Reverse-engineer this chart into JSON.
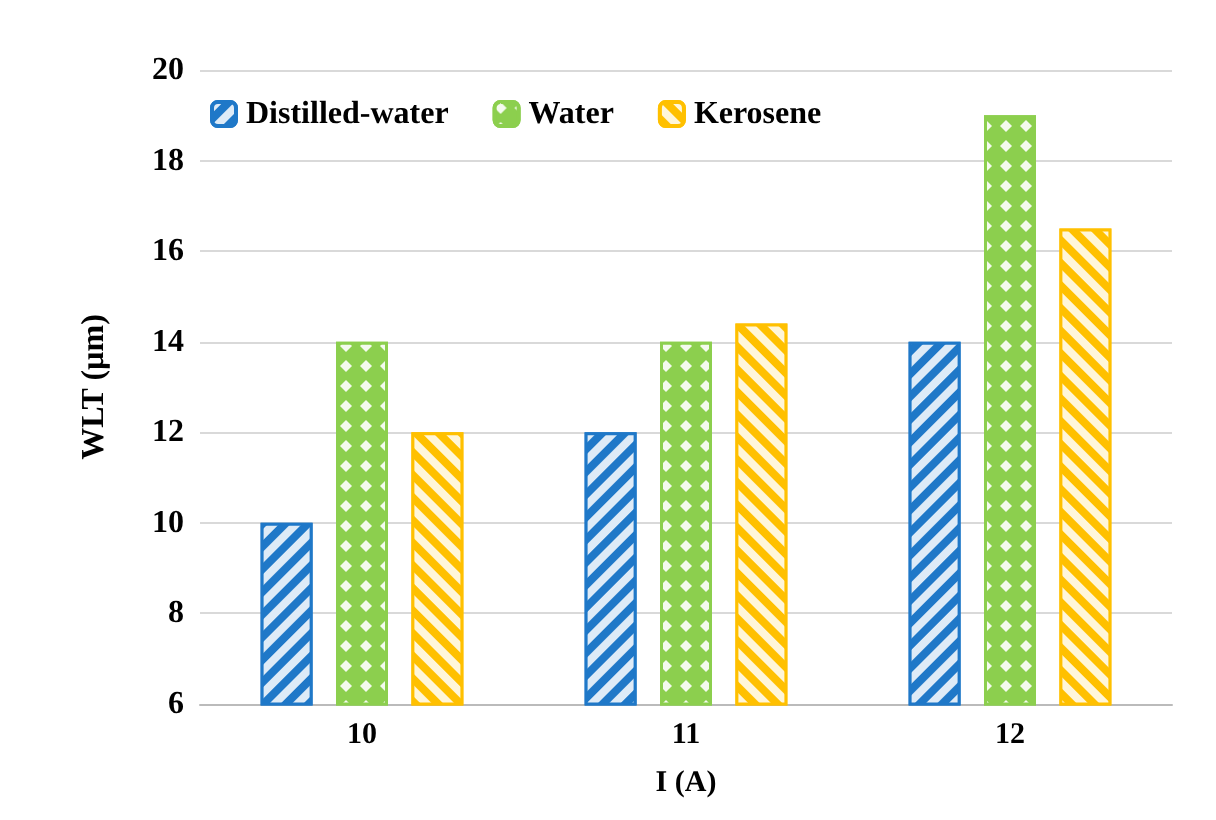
{
  "chart_data": {
    "type": "bar",
    "xlabel": "I (A)",
    "ylabel": "WLT (µm)",
    "categories": [
      "10",
      "11",
      "12"
    ],
    "series": [
      {
        "name": "Distilled-water",
        "color": "#1f78c8",
        "values": [
          10,
          12,
          14
        ]
      },
      {
        "name": "Water",
        "color": "#8ccf4e",
        "values": [
          14,
          14,
          19
        ]
      },
      {
        "name": "Kerosene",
        "color": "#ffc000",
        "values": [
          12,
          14.4,
          16.5
        ]
      }
    ],
    "ylim": [
      6,
      20
    ],
    "yticks": [
      6,
      8,
      10,
      12,
      14,
      16,
      18,
      20
    ],
    "grid": "y",
    "legend": "top left"
  }
}
